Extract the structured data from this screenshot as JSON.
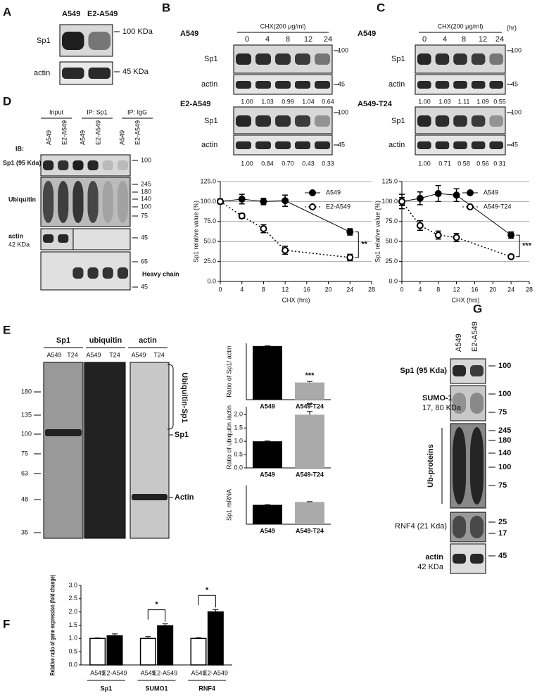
{
  "panel_labels": [
    "A",
    "B",
    "C",
    "D",
    "E",
    "F",
    "G"
  ],
  "blot_A": {
    "lanes": [
      "A549",
      "E2-A549"
    ],
    "rows": [
      "Sp1",
      "actin"
    ],
    "markers": [
      "100 KDa",
      "45 KDa"
    ]
  },
  "blot_B": {
    "treatment": "CHX(200 μg/ml)",
    "times": [
      "0",
      "4",
      "8",
      "12",
      "24"
    ],
    "cells": [
      "A549",
      "E2-A549"
    ],
    "rows": [
      "Sp1",
      "actin"
    ],
    "markers": [
      "100",
      "45"
    ],
    "ratios_1": [
      "1.00",
      "1.03",
      "0.99",
      "1.04",
      "0.64"
    ],
    "ratios_2": [
      "1.00",
      "0.84",
      "0.70",
      "0.43",
      "0.33"
    ]
  },
  "blot_C": {
    "treatment": "CHX(200 μg/ml)",
    "unit": "(hr)",
    "times": [
      "0",
      "4",
      "8",
      "12",
      "24"
    ],
    "cells": [
      "A549",
      "A549-T24"
    ],
    "rows": [
      "Sp1",
      "actin"
    ],
    "markers": [
      "100",
      "45"
    ],
    "ratios_1": [
      "1.00",
      "1.03",
      "1.11",
      "1.09",
      "0.55"
    ],
    "ratios_2": [
      "1.00",
      "0.71",
      "0.58",
      "0.56",
      "0.31"
    ]
  },
  "blot_D": {
    "groups": [
      "Input",
      "IP: Sp1",
      "IP: IgG"
    ],
    "lanes": [
      "A549",
      "E2-A549"
    ],
    "ib": "IB:",
    "rows": [
      "Sp1 (95 Kda)",
      "Ubiquitin",
      "actin",
      "42 KDa"
    ],
    "markers": [
      "100",
      "245",
      "180",
      "140",
      "100",
      "75",
      "45",
      "65",
      "45"
    ],
    "heavy": "Heavy chain"
  },
  "blot_E": {
    "headers": [
      "Sp1",
      "ubiquitin",
      "actin"
    ],
    "lanes": [
      "A549",
      "T24"
    ],
    "markers": [
      "180",
      "135",
      "100",
      "75",
      "63",
      "48",
      "35"
    ],
    "labels": [
      "Ubiquitin-Sp1",
      "Sp1",
      "Actin"
    ]
  },
  "blot_G": {
    "lanes": [
      "A549",
      "E2-A549"
    ],
    "rows": [
      "Sp1 (95 Kda)",
      "SUMO-1",
      "17, 80 KDa",
      "Ub-proteins",
      "RNF4 (21 Kda)",
      "actin",
      "42 KDa"
    ],
    "markers": [
      "100",
      "100",
      "75",
      "245",
      "180",
      "140",
      "100",
      "75",
      "25",
      "17",
      "45"
    ]
  },
  "chart_data": [
    {
      "type": "line",
      "ylabel": "Sp1 relative value (%)",
      "xlabel": "CHX (hrs)",
      "x": [
        0,
        4,
        8,
        12,
        24
      ],
      "xlim": [
        0,
        28
      ],
      "xticks": [
        0,
        4,
        8,
        12,
        16,
        20,
        24,
        28
      ],
      "ylim": [
        0,
        125
      ],
      "yticks": [
        {
          "value": 0,
          "label": "0.0"
        },
        {
          "value": 25,
          "label": "25.0"
        },
        {
          "value": 50,
          "label": "50.0"
        },
        {
          "value": 75,
          "label": "75.0"
        },
        {
          "value": 100,
          "label": "100.0"
        },
        {
          "value": 125,
          "label": "125.0"
        }
      ],
      "grid": true,
      "legend": "upper right",
      "annotation": "**",
      "series": [
        {
          "name": "A549",
          "color": "#000000",
          "marker": "filled",
          "linestyle": "solid",
          "values": [
            100,
            103,
            100,
            101,
            62
          ],
          "errors": [
            3,
            6,
            4,
            7,
            4
          ]
        },
        {
          "name": "E2-A549",
          "color": "#000000",
          "marker": "open",
          "linestyle": "dotted",
          "values": [
            100,
            82,
            66,
            39,
            30
          ],
          "errors": [
            3,
            3,
            5,
            5,
            4
          ]
        }
      ]
    },
    {
      "type": "line",
      "ylabel": "Sp1 relative value (%)",
      "xlabel": "CHX (hrs)",
      "x": [
        0,
        4,
        8,
        12,
        24
      ],
      "xlim": [
        0,
        28
      ],
      "xticks": [
        0,
        4,
        8,
        12,
        16,
        20,
        24,
        28
      ],
      "ylim": [
        0,
        125
      ],
      "yticks": [
        {
          "value": 0,
          "label": "0.0"
        },
        {
          "value": 25,
          "label": "25.0"
        },
        {
          "value": 50,
          "label": "50.0"
        },
        {
          "value": 75,
          "label": "75.0"
        },
        {
          "value": 100,
          "label": "100.0"
        },
        {
          "value": 125,
          "label": "125.0"
        }
      ],
      "grid": true,
      "legend": "upper right",
      "annotation": "***",
      "series": [
        {
          "name": "A549",
          "color": "#000000",
          "marker": "filled",
          "linestyle": "solid",
          "values": [
            100,
            104,
            110,
            108,
            58
          ],
          "errors": [
            9,
            8,
            10,
            8,
            4
          ]
        },
        {
          "name": "A549-T24",
          "color": "#000000",
          "marker": "open",
          "linestyle": "dotted",
          "values": [
            100,
            70,
            58,
            55,
            31
          ],
          "errors": [
            5,
            6,
            5,
            5,
            2
          ]
        }
      ]
    },
    {
      "type": "bar",
      "ylabel": "Ratio of Sp1/ actin",
      "categories": [
        "A549",
        "A549-T24"
      ],
      "values": [
        1.0,
        0.32
      ],
      "errors": [
        0.005,
        0.02
      ],
      "colors": [
        "#000000",
        "#aaaaaa"
      ],
      "ylim": [
        0,
        1.05
      ],
      "annotations": [
        null,
        "***"
      ]
    },
    {
      "type": "bar",
      "ylabel": "Ratio of ubiquitin /actin",
      "categories": [
        "A549",
        "A549-T24"
      ],
      "values": [
        1.0,
        2.0
      ],
      "errors": [
        0.01,
        0.12
      ],
      "colors": [
        "#000000",
        "#aaaaaa"
      ],
      "ylim": [
        0,
        2.3
      ],
      "yticks": [
        {
          "value": 0,
          "label": "0.0"
        },
        0.5,
        {
          "value": 1,
          "label": "1.0"
        },
        1.5,
        {
          "value": 2,
          "label": "2.0"
        }
      ],
      "annotations": [
        null,
        "**"
      ]
    },
    {
      "type": "bar",
      "ylabel": "Sp1 mRNA",
      "categories": [
        "A549",
        "A549-T24"
      ],
      "values": [
        1.0,
        1.15
      ],
      "errors": [
        0.01,
        0.02
      ],
      "colors": [
        "#000000",
        "#aaaaaa"
      ],
      "ylim": [
        0,
        2.0
      ],
      "annotations": [
        null,
        null
      ]
    },
    {
      "type": "grouped_bar",
      "ylabel": "Relative ratio of gene expression (fold change)",
      "groups": [
        "Sp1",
        "SUMO1",
        "RNF4"
      ],
      "ylim": [
        0,
        3.0
      ],
      "yticks": [
        {
          "value": 0,
          "label": "0.0"
        },
        0.5,
        {
          "value": 1,
          "label": "1.0"
        },
        1.5,
        {
          "value": 2,
          "label": "2.0"
        },
        2.5,
        {
          "value": 3,
          "label": "3.0"
        }
      ],
      "annotations": [
        null,
        "*",
        "*"
      ],
      "series": [
        {
          "name": "A549",
          "color": "#ffffff",
          "values": [
            1.0,
            1.0,
            1.0
          ],
          "errors": [
            0.02,
            0.07,
            0.03
          ]
        },
        {
          "name": "E2-A549",
          "color": "#000000",
          "values": [
            1.1,
            1.48,
            2.0
          ],
          "errors": [
            0.07,
            0.07,
            0.09
          ]
        }
      ]
    }
  ]
}
